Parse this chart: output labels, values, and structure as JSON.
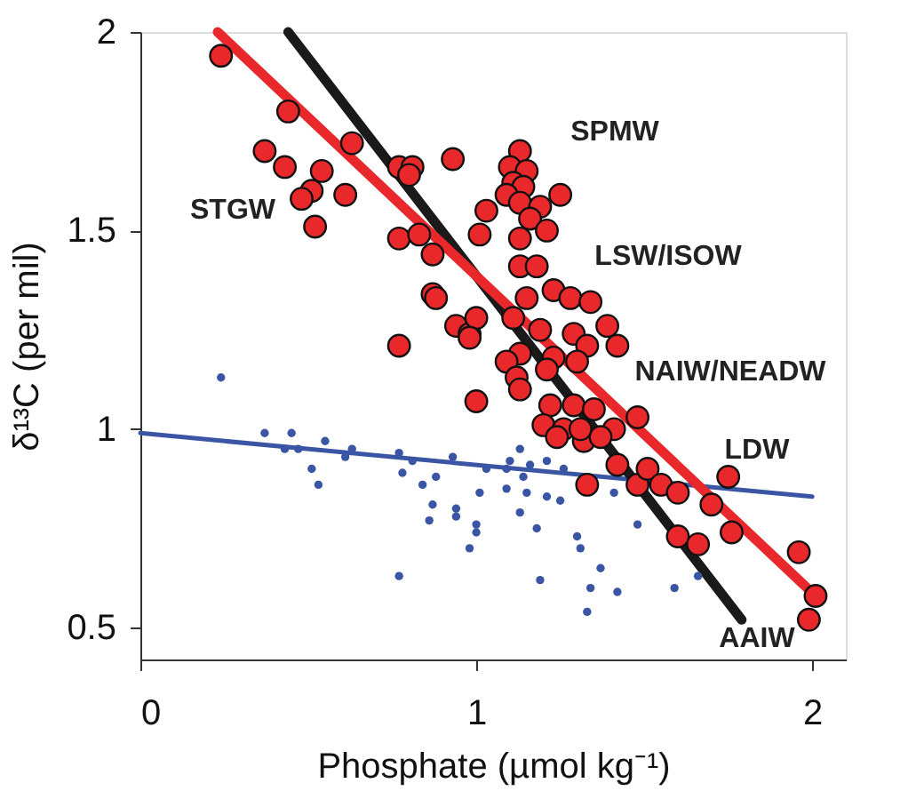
{
  "chart_data": {
    "type": "scatter",
    "xlabel": "Phosphate (µmol kg⁻¹)",
    "ylabel": "δ¹³C (per mil)",
    "xlim": [
      0,
      2.1
    ],
    "ylim": [
      0.42,
      2
    ],
    "xticks": [
      0,
      1,
      2
    ],
    "yticks": [
      0.5,
      1,
      1.5,
      2
    ],
    "grid": false,
    "series": [
      {
        "marker": "circle",
        "color": "#3a55a4",
        "x": [
          0.24,
          0.37,
          0.45,
          0.43,
          0.47,
          0.55,
          0.61,
          0.63,
          0.51,
          0.53,
          0.77,
          0.78,
          0.81,
          0.84,
          0.88,
          0.93,
          0.87,
          0.86,
          0.94,
          0.94,
          1.01,
          1.0,
          1.0,
          0.98,
          0.77,
          1.03,
          1.09,
          1.13,
          1.18,
          1.15,
          1.19,
          1.1,
          1.13,
          1.14,
          1.09,
          1.16,
          1.21,
          1.26,
          1.21,
          1.25,
          1.3,
          1.31,
          1.37,
          1.48,
          1.34,
          1.42,
          1.33,
          1.59,
          1.66,
          1.41
        ],
        "values": [
          1.13,
          0.99,
          0.99,
          0.95,
          0.95,
          0.97,
          0.93,
          0.95,
          0.9,
          0.86,
          0.94,
          0.89,
          0.92,
          0.86,
          0.88,
          0.93,
          0.81,
          0.77,
          0.8,
          0.78,
          0.84,
          0.76,
          0.74,
          0.7,
          0.63,
          0.9,
          0.85,
          0.79,
          0.75,
          0.84,
          0.62,
          0.92,
          0.95,
          0.88,
          0.9,
          0.91,
          0.92,
          0.9,
          0.83,
          0.82,
          0.73,
          0.7,
          0.65,
          0.76,
          0.6,
          0.59,
          0.54,
          0.6,
          0.63,
          0.84
        ]
      },
      {
        "marker": "circle",
        "color": "#e8282a",
        "x": [
          0.24,
          0.44,
          0.37,
          0.43,
          0.54,
          0.51,
          0.48,
          0.61,
          0.52,
          0.63,
          0.77,
          0.81,
          0.8,
          0.93,
          0.77,
          0.83,
          0.87,
          0.87,
          0.94,
          0.98,
          0.77,
          1.13,
          1.1,
          1.15,
          1.11,
          1.14,
          1.09,
          1.13,
          1.19,
          1.16,
          1.21,
          1.13,
          1.25,
          1.03,
          1.01,
          1.13,
          1.18,
          0.88,
          1.0,
          0.98,
          1.0,
          1.15,
          1.23,
          1.28,
          1.34,
          1.39,
          1.42,
          1.11,
          1.19,
          1.29,
          1.33,
          1.13,
          1.23,
          1.09,
          1.12,
          1.21,
          1.3,
          1.13,
          1.22,
          1.29,
          1.35,
          1.2,
          1.26,
          1.41,
          1.48,
          1.24,
          1.32,
          1.37,
          1.31,
          1.33,
          1.42,
          1.48,
          1.51,
          1.55,
          1.6,
          1.75,
          1.7,
          1.76,
          1.6,
          1.66,
          1.96,
          2.01,
          1.99
        ],
        "values": [
          1.94,
          1.8,
          1.7,
          1.66,
          1.65,
          1.6,
          1.58,
          1.59,
          1.51,
          1.72,
          1.66,
          1.66,
          1.64,
          1.68,
          1.48,
          1.49,
          1.44,
          1.34,
          1.26,
          1.24,
          1.21,
          1.7,
          1.66,
          1.65,
          1.62,
          1.61,
          1.59,
          1.57,
          1.56,
          1.53,
          1.5,
          1.48,
          1.59,
          1.55,
          1.49,
          1.41,
          1.41,
          1.33,
          1.28,
          1.23,
          1.07,
          1.33,
          1.35,
          1.33,
          1.32,
          1.26,
          1.21,
          1.28,
          1.25,
          1.24,
          1.21,
          1.19,
          1.18,
          1.17,
          1.13,
          1.15,
          1.17,
          1.1,
          1.06,
          1.06,
          1.05,
          1.01,
          1.0,
          1.0,
          1.03,
          0.98,
          0.97,
          0.98,
          1.0,
          0.86,
          0.91,
          0.86,
          0.9,
          0.86,
          0.84,
          0.88,
          0.81,
          0.74,
          0.73,
          0.71,
          0.69,
          0.58,
          0.52
        ]
      },
      {
        "type": "line",
        "marker": "none",
        "line_style": "solid",
        "color": "#e8282a",
        "x": [
          0.23,
          2.01
        ],
        "values": [
          2.0,
          0.58
        ]
      },
      {
        "type": "line",
        "marker": "none",
        "line_style": "solid",
        "color": "#1a1a1a",
        "x": [
          0.44,
          1.79
        ],
        "values": [
          2.0,
          0.52
        ]
      },
      {
        "type": "line",
        "marker": "none",
        "line_style": "solid",
        "color": "#3a55a4",
        "x": [
          0,
          2.0
        ],
        "values": [
          0.99,
          0.83
        ]
      }
    ],
    "annotations": [
      "STGW",
      "SPMW",
      "LSW/ISOW",
      "NAIW/NEADW",
      "LDW",
      "AAIW"
    ]
  }
}
